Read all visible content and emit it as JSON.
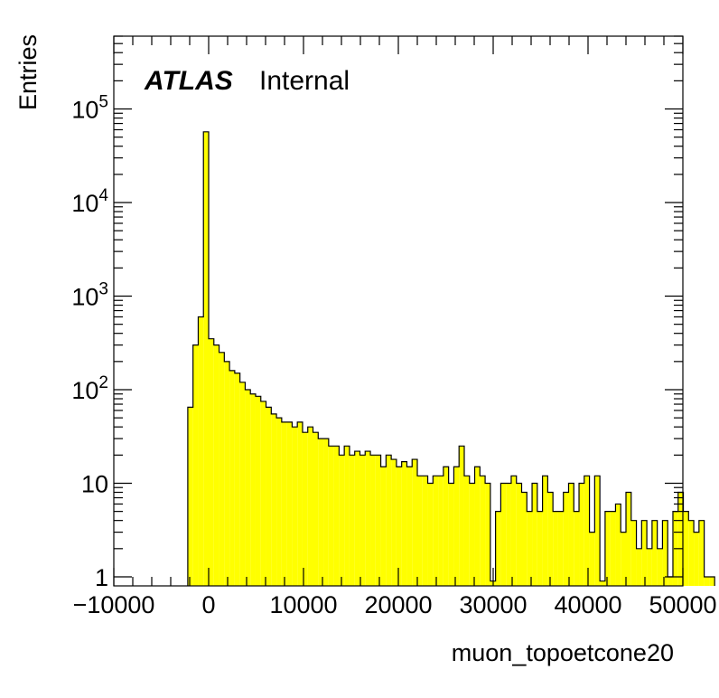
{
  "chart_data": {
    "type": "histogram",
    "title": "",
    "xlabel": "muon_topoetcone20",
    "ylabel": "Entries",
    "label_bold": "ATLAS",
    "label_text": "Internal",
    "fill_color": "#ffff00",
    "line_color": "#000000",
    "xlim": [
      -10000,
      50000
    ],
    "ylim": [
      0.8,
      600000
    ],
    "log_y": true,
    "grid": false,
    "x_ticks": [
      -10000,
      0,
      10000,
      20000,
      30000,
      40000,
      50000
    ],
    "x_tick_labels": [
      "−10000",
      "0",
      "10000",
      "20000",
      "30000",
      "40000",
      "50000"
    ],
    "y_ticks": [
      1,
      10,
      100,
      1000,
      10000,
      100000
    ],
    "y_tick_labels": [
      {
        "base": "1",
        "exp": ""
      },
      {
        "base": "10",
        "exp": ""
      },
      {
        "base": "10",
        "exp": "2"
      },
      {
        "base": "10",
        "exp": "3"
      },
      {
        "base": "10",
        "exp": "4"
      },
      {
        "base": "10",
        "exp": "5"
      }
    ],
    "bins": {
      "start": -2200,
      "width": 550,
      "values": [
        65,
        300,
        600,
        57000,
        350,
        300,
        250,
        200,
        160,
        150,
        120,
        100,
        90,
        85,
        75,
        65,
        55,
        50,
        45,
        45,
        40,
        45,
        35,
        40,
        35,
        30,
        30,
        25,
        25,
        20,
        25,
        20,
        22,
        20,
        22,
        20,
        20,
        15,
        20,
        18,
        15,
        17,
        15,
        18,
        12,
        12,
        10,
        12,
        12,
        15,
        10,
        15,
        25,
        12,
        10,
        15,
        12,
        10,
        0.9,
        5,
        10,
        10,
        12,
        10,
        8,
        5,
        10,
        5,
        12,
        8,
        5,
        5,
        8,
        10,
        5,
        10,
        12,
        3,
        12,
        0.9,
        5,
        5,
        6,
        3,
        8,
        4,
        2,
        4,
        2,
        4,
        2,
        4,
        1,
        5,
        8,
        5,
        4,
        3,
        4,
        1,
        1
      ]
    }
  }
}
